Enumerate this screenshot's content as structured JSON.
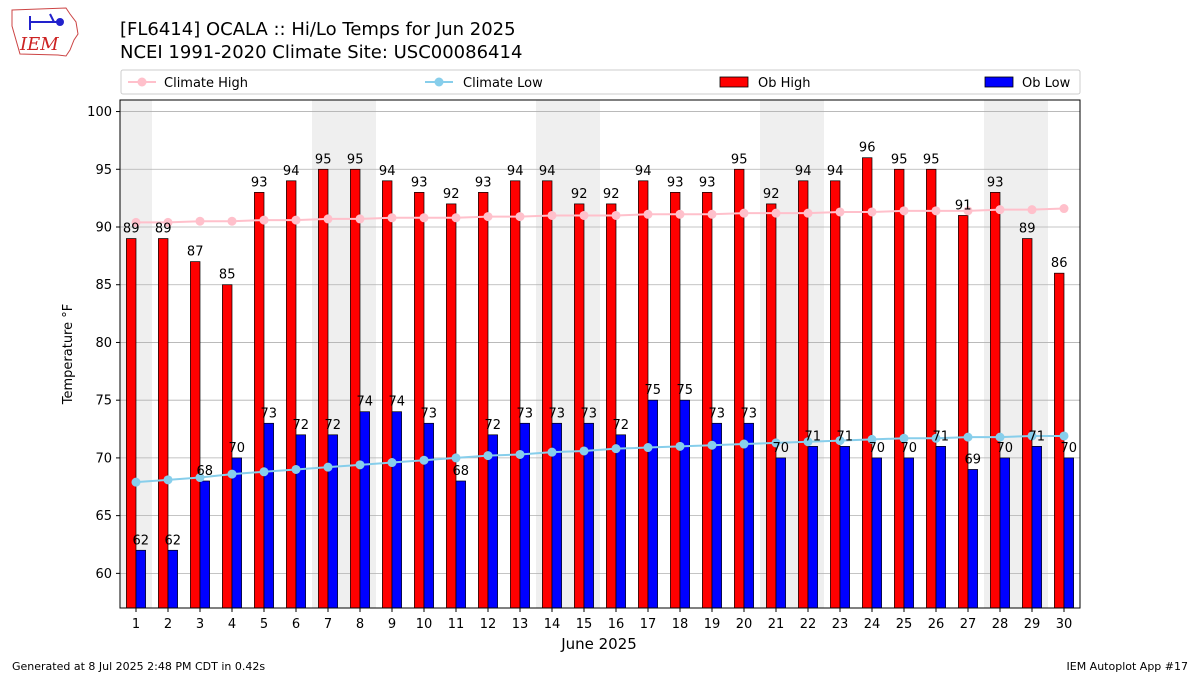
{
  "header": {
    "title_line1": "[FL6414] OCALA :: Hi/Lo Temps for Jun 2025",
    "title_line2": "NCEI 1991-2020 Climate Site: USC00086414",
    "logo_text": "IEM"
  },
  "footer": {
    "generated": "Generated at 8 Jul 2025 2:48 PM CDT in 0.42s",
    "app": "IEM Autoplot App #17"
  },
  "chart_data": {
    "type": "bar",
    "xlabel": "June 2025",
    "ylabel": "Temperature °F",
    "ylim": [
      57,
      101
    ],
    "yticks": [
      60,
      65,
      70,
      75,
      80,
      85,
      90,
      95,
      100
    ],
    "grid": true,
    "legend_position": "top",
    "categories": [
      "1",
      "2",
      "3",
      "4",
      "5",
      "6",
      "7",
      "8",
      "9",
      "10",
      "11",
      "12",
      "13",
      "14",
      "15",
      "16",
      "17",
      "18",
      "19",
      "20",
      "21",
      "22",
      "23",
      "24",
      "25",
      "26",
      "27",
      "28",
      "29",
      "30"
    ],
    "weekend_days": [
      1,
      7,
      8,
      14,
      15,
      21,
      22,
      28,
      29
    ],
    "series": [
      {
        "name": "Ob High",
        "kind": "bar",
        "color": "#ff0000",
        "values": [
          89,
          89,
          87,
          85,
          93,
          94,
          95,
          95,
          94,
          93,
          92,
          93,
          94,
          94,
          92,
          92,
          94,
          93,
          93,
          95,
          92,
          94,
          94,
          96,
          95,
          95,
          91,
          93,
          89,
          86
        ]
      },
      {
        "name": "Ob Low",
        "kind": "bar",
        "color": "#0000ff",
        "values": [
          62,
          62,
          68,
          70,
          73,
          72,
          72,
          74,
          74,
          73,
          68,
          72,
          73,
          73,
          73,
          72,
          75,
          75,
          73,
          73,
          70,
          71,
          71,
          70,
          70,
          71,
          69,
          70,
          71,
          70
        ]
      },
      {
        "name": "Climate High",
        "kind": "line",
        "color": "#ffc0cb",
        "values": [
          90.4,
          90.4,
          90.5,
          90.5,
          90.6,
          90.6,
          90.7,
          90.7,
          90.8,
          90.8,
          90.8,
          90.9,
          90.9,
          91.0,
          91.0,
          91.0,
          91.1,
          91.1,
          91.1,
          91.2,
          91.2,
          91.2,
          91.3,
          91.3,
          91.4,
          91.4,
          91.4,
          91.5,
          91.5,
          91.6
        ]
      },
      {
        "name": "Climate Low",
        "kind": "line",
        "color": "#87ceeb",
        "values": [
          67.9,
          68.1,
          68.3,
          68.6,
          68.8,
          69.0,
          69.2,
          69.4,
          69.6,
          69.8,
          70.0,
          70.2,
          70.3,
          70.5,
          70.6,
          70.8,
          70.9,
          71.0,
          71.1,
          71.2,
          71.3,
          71.4,
          71.5,
          71.6,
          71.7,
          71.7,
          71.8,
          71.8,
          71.9,
          71.9
        ]
      }
    ],
    "legend_order": [
      "Climate High",
      "Climate Low",
      "Ob High",
      "Ob Low"
    ]
  }
}
